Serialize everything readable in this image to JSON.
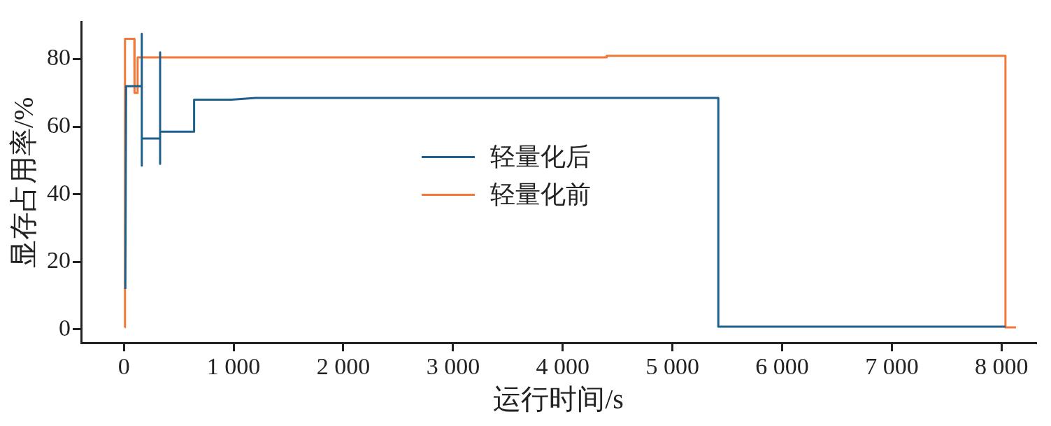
{
  "chart_data": {
    "type": "line",
    "xlabel": "运行时间/s",
    "ylabel": "显存占用率/%",
    "xlim": [
      -390,
      8310
    ],
    "ylim": [
      -4,
      91
    ],
    "xticks": [
      0,
      {
        "value": 1000,
        "label": "1 000"
      },
      {
        "value": 2000,
        "label": "2 000"
      },
      {
        "value": 3000,
        "label": "3 000"
      },
      {
        "value": 4000,
        "label": "4 000"
      },
      {
        "value": 5000,
        "label": "5 000"
      },
      {
        "value": 6000,
        "label": "6 000"
      },
      {
        "value": 7000,
        "label": "7 000"
      },
      {
        "value": 8000,
        "label": "8 000"
      }
    ],
    "yticks": [
      0,
      20,
      40,
      60,
      80
    ],
    "grid": false,
    "legend": "center",
    "marker": "none",
    "line_style": "solid",
    "series": [
      {
        "name": "轻量化后",
        "color": "#1f5f8b",
        "x": [
          13,
          20,
          163,
          163,
          163,
          163,
          330,
          330,
          330,
          330,
          640,
          640,
          980,
          1200,
          5418,
          5418,
          8035
        ],
        "values": [
          12,
          72,
          72,
          87.5,
          48.5,
          56.5,
          56.5,
          82,
          49,
          58.5,
          58.5,
          68,
          68,
          68.5,
          68.5,
          0.8,
          0.8
        ]
      },
      {
        "name": "轻量化前",
        "color": "#f07838",
        "x": [
          8,
          10,
          95,
          97,
          120,
          125,
          4400,
          4400,
          8035,
          8035,
          8131
        ],
        "values": [
          0.6,
          86,
          86,
          70,
          70,
          80.5,
          80.5,
          81,
          81,
          0.6,
          0.6
        ]
      }
    ]
  }
}
